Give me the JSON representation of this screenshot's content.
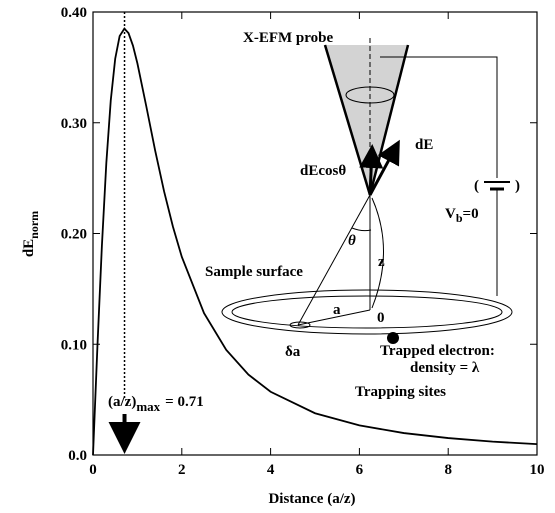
{
  "chart_data": {
    "type": "line",
    "x_label": "Distance (a/z)",
    "y_label": {
      "main": "dE",
      "sub": "norm"
    },
    "x": [
      0,
      0.1,
      0.2,
      0.3,
      0.4,
      0.5,
      0.6,
      0.707,
      0.8,
      0.9,
      1,
      1.2,
      1.4,
      1.6,
      1.8,
      2,
      2.5,
      3,
      3.5,
      4,
      5,
      6,
      7,
      8,
      9,
      10
    ],
    "values": [
      0,
      0.0985,
      0.1886,
      0.2636,
      0.3202,
      0.3578,
      0.3783,
      0.385,
      0.3809,
      0.3696,
      0.3536,
      0.3149,
      0.2749,
      0.2382,
      0.2062,
      0.1789,
      0.1281,
      0.0949,
      0.0726,
      0.0571,
      0.0377,
      0.0267,
      0.0198,
      0.0153,
      0.0121,
      0.0098
    ],
    "color": "#000000",
    "xlim": [
      0,
      10
    ],
    "ylim": [
      0,
      0.4
    ],
    "xticks": [
      0,
      2,
      4,
      6,
      8,
      10
    ],
    "yticks": [
      {
        "value": 0,
        "label": "0.0"
      },
      {
        "value": 0.1,
        "label": "0.10"
      },
      {
        "value": 0.2,
        "label": "0.20"
      },
      {
        "value": 0.3,
        "label": "0.30"
      },
      {
        "value": 0.4,
        "label": "0.40"
      }
    ],
    "peak": {
      "x": 0.71,
      "prefix": "(a/z)",
      "sub": "max",
      "label": "= 0.71"
    },
    "inset": {
      "probe": "X-EFM probe",
      "de": "dE",
      "decos": "dEcosθ",
      "paren_open": "(",
      "paren_close": ")",
      "vb_main": "V",
      "vb_sub": "b",
      "vb_rest": "=0",
      "theta": "θ",
      "z": "z",
      "a": "a",
      "origin": "0",
      "da": "δa",
      "surface": "Sample surface",
      "electron": "Trapped electron:",
      "density": "density = λ",
      "sites": "Trapping sites"
    }
  }
}
